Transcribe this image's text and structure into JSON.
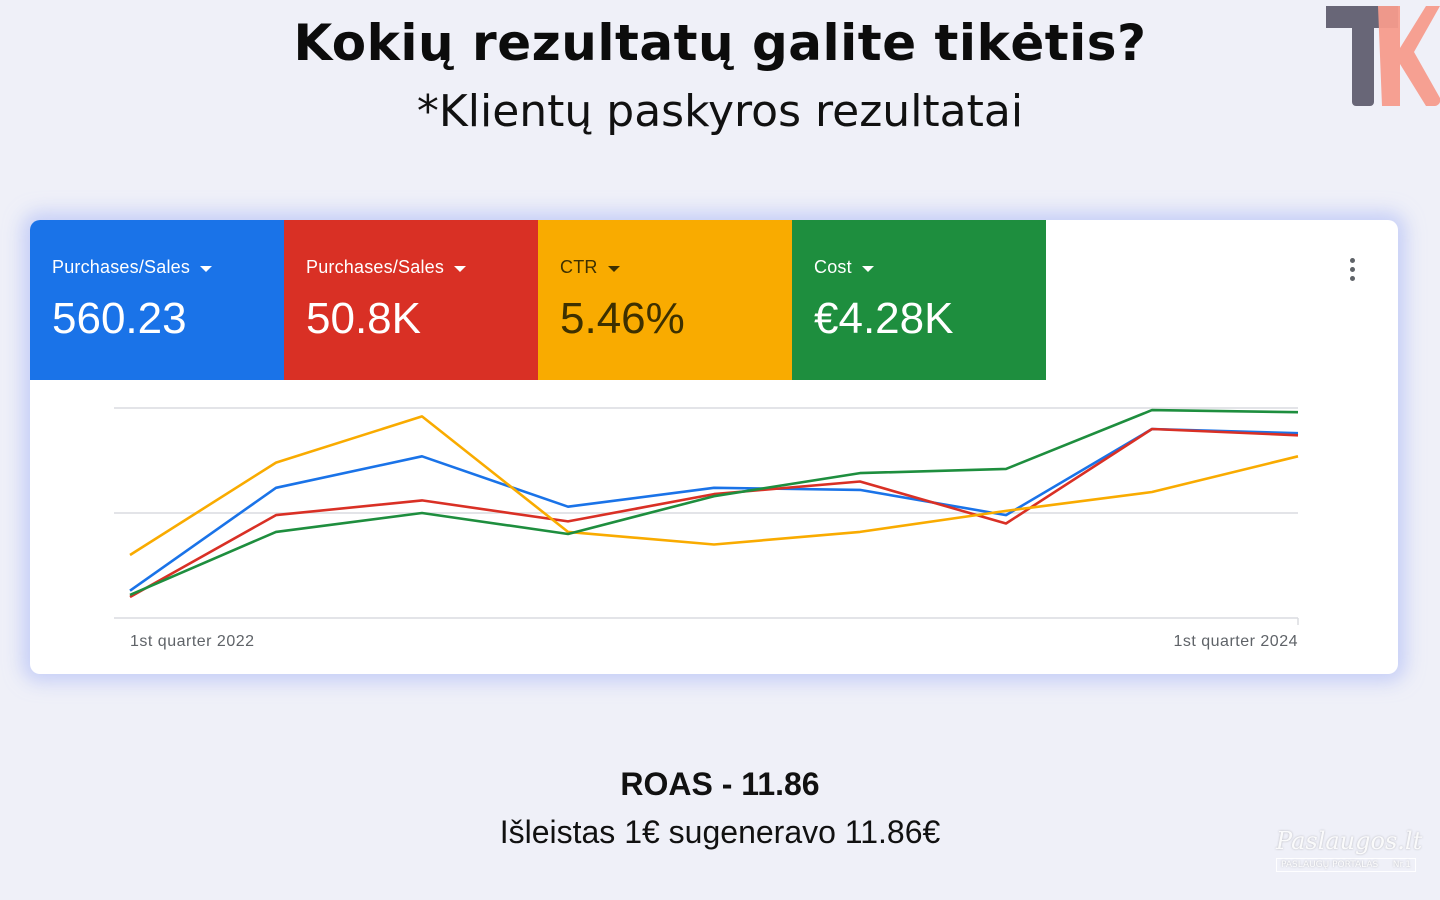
{
  "heading": "Kokių rezultatų galite tikėtis?",
  "subheading": "*Klientų paskyros rezultatai",
  "logo": {
    "icon": "tk-logo",
    "colors": {
      "t": "#686677",
      "k": "#f59b8c"
    }
  },
  "metrics": [
    {
      "label": "Purchases/Sales",
      "value": "560.23",
      "color": "#1a73e8"
    },
    {
      "label": "Purchases/Sales",
      "value": "50.8K",
      "color": "#d93025"
    },
    {
      "label": "CTR",
      "value": "5.46%",
      "color": "#f9ab00"
    },
    {
      "label": "Cost",
      "value": "€4.28K",
      "color": "#1e8e3e"
    }
  ],
  "menu_icon": "more-vert-icon",
  "chart_data": {
    "type": "line",
    "x_tick_labels": [
      "1st quarter 2022",
      "1st quarter 2024"
    ],
    "x": [
      0,
      1,
      2,
      3,
      4,
      5,
      6,
      7,
      8
    ],
    "ylim": [
      0,
      100
    ],
    "grid": true,
    "series": [
      {
        "color": "#1a73e8",
        "values": [
          13,
          62,
          77,
          53,
          62,
          61,
          49,
          90,
          88
        ]
      },
      {
        "color": "#d93025",
        "values": [
          10,
          49,
          56,
          46,
          59,
          65,
          45,
          90,
          87
        ]
      },
      {
        "color": "#f9ab00",
        "values": [
          30,
          74,
          96,
          41,
          35,
          41,
          51,
          60,
          77
        ]
      },
      {
        "color": "#1e8e3e",
        "values": [
          11,
          41,
          50,
          40,
          58,
          69,
          71,
          99,
          98
        ]
      }
    ]
  },
  "roas_title": "ROAS - 11.86",
  "roas_description": "Išleistas 1€ sugeneravo 11.86€",
  "watermark": {
    "main": "Paslaugos.lt",
    "sub_left": "PASLAUGŲ PORTALAS",
    "sub_right": "Nr.1"
  }
}
